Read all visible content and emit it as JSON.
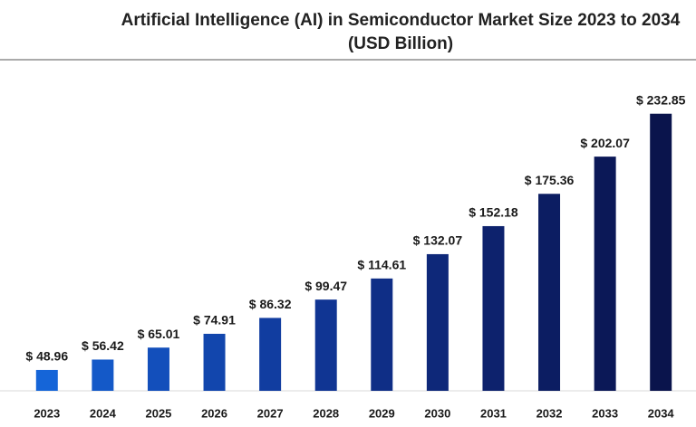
{
  "chart_data": {
    "type": "bar",
    "title": "Artificial Intelligence (AI) in Semiconductor Market Size 2023 to 2034",
    "subtitle": "(USD Billion)",
    "categories": [
      "2023",
      "2024",
      "2025",
      "2026",
      "2027",
      "2028",
      "2029",
      "2030",
      "2031",
      "2032",
      "2033",
      "2034"
    ],
    "values": [
      48.96,
      56.42,
      65.01,
      74.91,
      86.32,
      99.47,
      114.61,
      132.07,
      152.18,
      175.36,
      202.07,
      232.85
    ],
    "value_labels": [
      "$ 48.96",
      "$ 56.42",
      "$ 65.01",
      "$ 74.91",
      "$ 86.32",
      "$ 99.47",
      "$ 114.61",
      "$ 132.07",
      "$ 152.18",
      "$ 175.36",
      "$ 202.07",
      "$ 232.85"
    ],
    "colors": [
      "#1565d8",
      "#1459c8",
      "#134fbb",
      "#1246ad",
      "#113da0",
      "#103593",
      "#0f2e86",
      "#0e2879",
      "#0d226d",
      "#0c1d62",
      "#0b1857",
      "#0a144c"
    ],
    "ylim": [
      34,
      245
    ]
  }
}
